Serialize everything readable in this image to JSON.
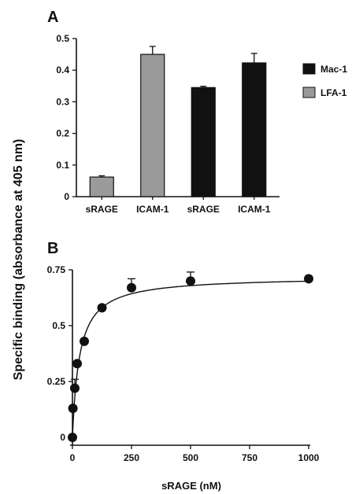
{
  "y_axis_label": "Specific binding (absorbance at 405 nm)",
  "chart_data": [
    {
      "panel": "A",
      "type": "bar",
      "categories": [
        "sRAGE",
        "ICAM-1",
        "sRAGE",
        "ICAM-1"
      ],
      "values": [
        0.062,
        0.45,
        0.345,
        0.423
      ],
      "errors": [
        0.004,
        0.025,
        0.004,
        0.03
      ],
      "bar_series": [
        "LFA-1",
        "LFA-1",
        "Mac-1",
        "Mac-1"
      ],
      "legend": [
        {
          "name": "Mac-1",
          "color": "#111111"
        },
        {
          "name": "LFA-1",
          "color": "#9a9a9a"
        }
      ],
      "legend_position": "right",
      "ylim": [
        0,
        0.5
      ],
      "yticks": [
        "0",
        "0.1",
        "0.2",
        "0.3",
        "0.4",
        "0.5"
      ],
      "ytick_values": [
        0,
        0.1,
        0.2,
        0.3,
        0.4,
        0.5
      ],
      "grid": false
    },
    {
      "panel": "B",
      "type": "scatter",
      "xlabel": "sRAGE (nM)",
      "x": [
        0,
        2,
        10,
        20,
        50,
        125,
        250,
        500,
        1000
      ],
      "y": [
        0,
        0.13,
        0.22,
        0.33,
        0.43,
        0.58,
        0.67,
        0.7,
        0.71
      ],
      "errors": [
        0,
        0.01,
        0.04,
        0.01,
        0.01,
        0.01,
        0.04,
        0.04,
        0.01
      ],
      "fit_curve": {
        "bmax": 0.72,
        "kd": 30
      },
      "xlim": [
        0,
        1000
      ],
      "ylim": [
        0,
        0.75
      ],
      "xticks": [
        "0",
        "250",
        "500",
        "750",
        "1000"
      ],
      "xtick_values": [
        0,
        250,
        500,
        750,
        1000
      ],
      "yticks": [
        "0",
        "0.25",
        "0.5",
        "0.75"
      ],
      "ytick_values": [
        0,
        0.25,
        0.5,
        0.75
      ],
      "grid": false
    }
  ]
}
